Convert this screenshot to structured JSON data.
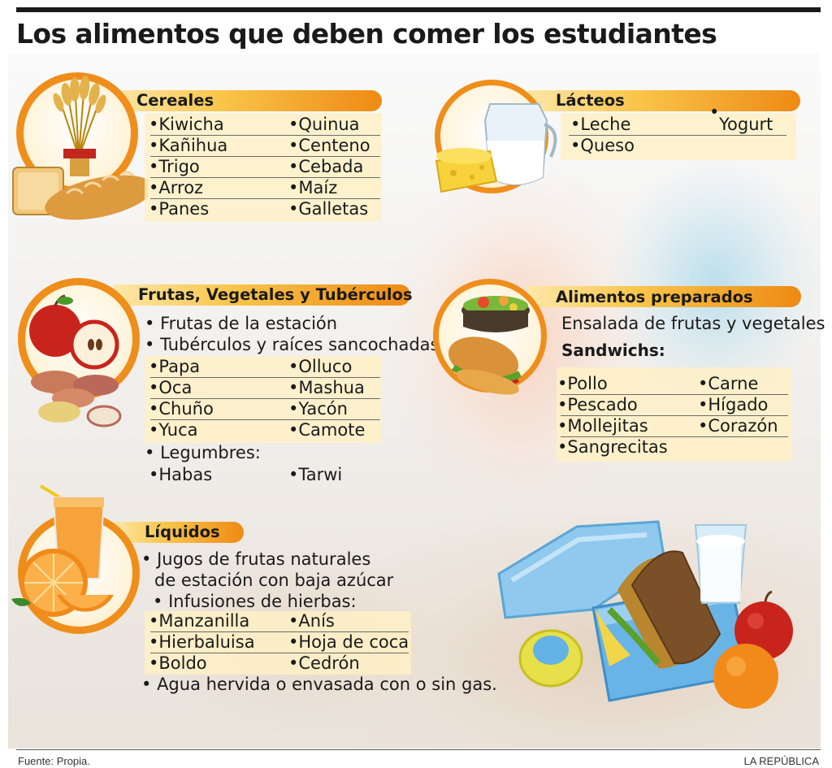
{
  "title": "Los alimentos que deben comer los estudiantes",
  "colors": {
    "accent": "#ef8e1b",
    "label_light": "#fde7a8",
    "table_bg": "#fff0c4",
    "text": "#1a1a1a"
  },
  "sections": {
    "cereales": {
      "title": "Cereales",
      "col1": [
        "Kiwicha",
        "Kañihua",
        "Trigo",
        "Arroz",
        "Panes"
      ],
      "col2": [
        "Quinua",
        "Centeno",
        "Cebada",
        "Maíz",
        "Galletas"
      ]
    },
    "lacteos": {
      "title": "Lácteos",
      "col1": [
        "Leche",
        "Queso"
      ],
      "col2": [
        "Yogurt"
      ]
    },
    "frutas": {
      "title": "Frutas, Vegetales y Tubérculos",
      "line1": "Frutas de la estación",
      "line2": "Tubérculos y raíces sancochadas:",
      "col1": [
        "Papa",
        "Oca",
        "Chuño",
        "Yuca"
      ],
      "col2": [
        "Olluco",
        "Mashua",
        "Yacón",
        "Camote"
      ],
      "legumbres_label": "Legumbres:",
      "legumbres": [
        "Habas",
        "Tarwi"
      ]
    },
    "preparados": {
      "title": "Alimentos preparados",
      "line1": "Ensalada de frutas y vegetales",
      "sandwich_label": "Sandwichs:",
      "col1": [
        "Pollo",
        "Pescado",
        "Mollejitas",
        "Sangrecitas"
      ],
      "col2": [
        "Carne",
        "Hígado",
        "Corazón"
      ]
    },
    "liquidos": {
      "title": "Líquidos",
      "line1a": "Jugos de frutas naturales",
      "line1b": "de estación con baja azúcar",
      "line2": "Infusiones de hierbas:",
      "col1": [
        "Manzanilla",
        "Hierbaluisa",
        "Boldo"
      ],
      "col2": [
        "Anís",
        "Hoja de coca",
        "Cedrón"
      ],
      "line3": "Agua hervida o envasada con o sin gas."
    }
  },
  "icons": [
    "wheat-bread-icon",
    "milk-cheese-icon",
    "apple-potato-icon",
    "salad-sandwich-icon",
    "orange-juice-icon",
    "lunchbox-illustration"
  ],
  "footer": {
    "source": "Fuente: Propia.",
    "brand": "LA REPÚBLICA"
  }
}
